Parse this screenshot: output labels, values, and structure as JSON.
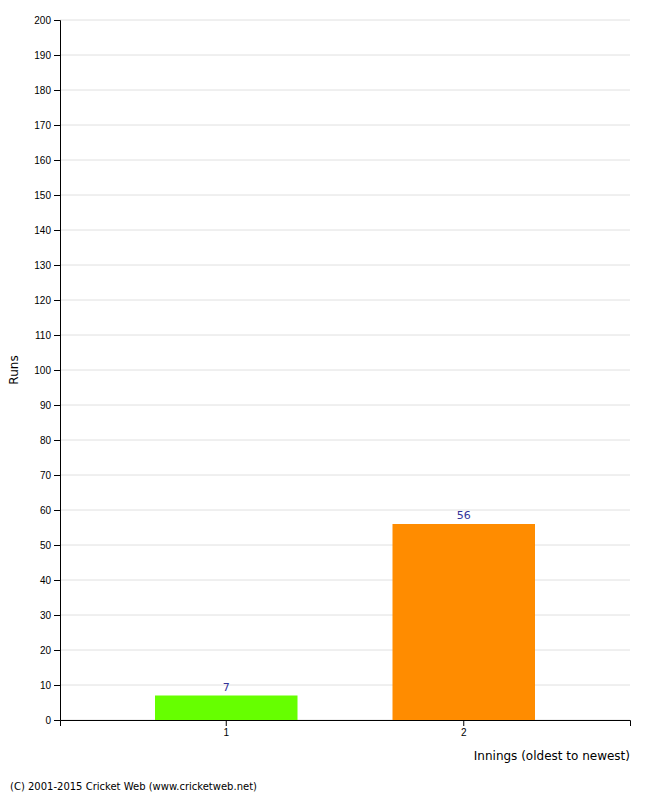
{
  "chart_data": {
    "type": "bar",
    "categories": [
      "1",
      "2"
    ],
    "values": [
      7,
      56
    ],
    "colors": [
      "#66ff00",
      "#ff8c00"
    ],
    "xlabel": "Innings (oldest to newest)",
    "ylabel": "Runs",
    "ylim": [
      0,
      200
    ],
    "yticks": [
      0,
      10,
      20,
      30,
      40,
      50,
      60,
      70,
      80,
      90,
      100,
      110,
      120,
      130,
      140,
      150,
      160,
      170,
      180,
      190,
      200
    ],
    "grid": true,
    "data_labels": true,
    "annotations": [
      "(C) 2001-2015 Cricket Web (www.cricketweb.net)"
    ]
  }
}
